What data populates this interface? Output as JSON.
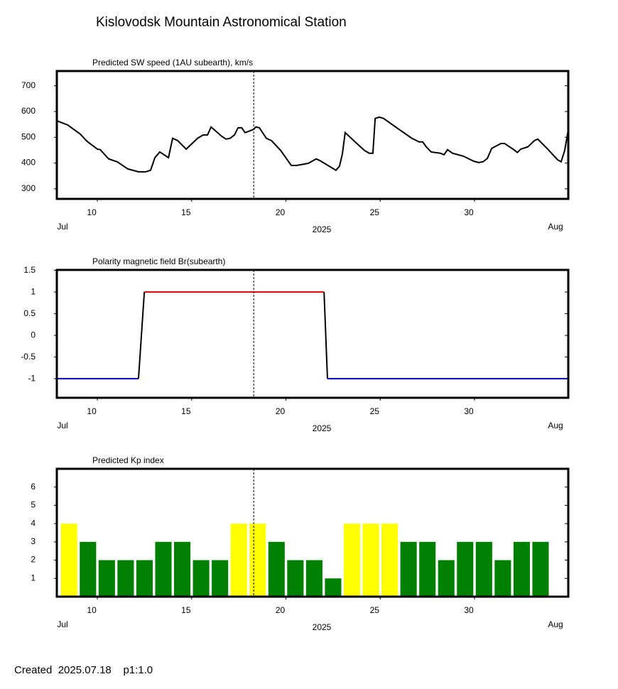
{
  "title": "Kislovodsk Mountain Astronomical Station",
  "footer": "Created  2025.07.18    p1:1.0",
  "chart_data": [
    {
      "type": "line",
      "title": "Predicted SW speed (1AU subearth), km/s",
      "color": "#000000",
      "x": [
        7.85,
        8.42,
        9.1,
        9.44,
        10.0,
        10.15,
        10.6,
        11.05,
        11.62,
        12.18,
        12.56,
        12.82,
        13.05,
        13.31,
        13.77,
        13.99,
        14.26,
        14.71,
        15.31,
        15.61,
        15.84,
        16.03,
        16.59,
        16.82,
        17.04,
        17.27,
        17.46,
        17.65,
        17.83,
        18.02,
        18.29,
        18.4,
        18.59,
        18.96,
        19.23,
        19.72,
        20.28,
        20.58,
        21.19,
        21.6,
        21.79,
        22.65,
        22.84,
        22.99,
        23.14,
        23.67,
        24.16,
        24.42,
        24.61,
        24.73,
        24.95,
        25.18,
        25.93,
        26.68,
        27.06,
        27.25,
        27.44,
        27.7,
        28.19,
        28.38,
        28.57,
        28.83,
        29.4,
        29.96,
        30.22,
        30.45,
        30.68,
        30.91,
        31.4,
        31.59,
        32.08,
        32.27,
        32.45,
        32.83,
        33.17,
        33.35,
        33.84,
        34.4,
        34.59,
        34.78,
        34.97
      ],
      "values": [
        564,
        548,
        512,
        485,
        454,
        452,
        416,
        405,
        377,
        366,
        366,
        372,
        421,
        443,
        421,
        496,
        487,
        454,
        496,
        509,
        509,
        540,
        504,
        493,
        496,
        509,
        537,
        537,
        518,
        523,
        531,
        540,
        537,
        496,
        487,
        449,
        391,
        391,
        399,
        416,
        410,
        372,
        388,
        435,
        518,
        482,
        449,
        438,
        438,
        573,
        578,
        573,
        534,
        496,
        482,
        482,
        463,
        443,
        438,
        432,
        452,
        438,
        427,
        407,
        402,
        405,
        418,
        457,
        476,
        476,
        452,
        441,
        454,
        463,
        487,
        493,
        457,
        413,
        405,
        449,
        529
      ],
      "xlim": [
        7.85,
        34.97
      ],
      "ylim": [
        261,
        757
      ],
      "xticks": [
        10,
        15,
        20,
        25,
        30
      ],
      "yticks": [
        300,
        400,
        500,
        600,
        700
      ],
      "month_labels": [
        "Jul",
        "Aug"
      ],
      "year_label": "2025",
      "marker_x": 18.29
    },
    {
      "type": "line",
      "title": "Polarity magnetic field  Br(subearth)",
      "color": "#000000",
      "positive_color": "#e00000",
      "negative_color": "#0000c0",
      "x": [
        7.85,
        12.18,
        12.49,
        22.02,
        22.2,
        34.97
      ],
      "values": [
        -1,
        -1,
        1,
        1,
        -1,
        -1
      ],
      "xlim": [
        7.85,
        34.97
      ],
      "ylim": [
        -1.44,
        1.51
      ],
      "xticks": [
        10,
        15,
        20,
        25,
        30
      ],
      "yticks": [
        1.5,
        1,
        0.5,
        0,
        -0.5,
        -1
      ],
      "month_labels": [
        "Jul",
        "Aug"
      ],
      "year_label": "2025",
      "marker_x": 18.29
    },
    {
      "type": "bar",
      "title": "Predicted Kp index",
      "x": [
        8.5,
        9.5,
        10.5,
        11.5,
        12.5,
        13.5,
        14.5,
        15.5,
        16.5,
        17.5,
        18.5,
        19.5,
        20.5,
        21.5,
        22.5,
        23.5,
        24.5,
        25.5,
        26.5,
        27.5,
        28.5,
        29.5,
        30.5,
        31.5,
        32.5,
        33.5
      ],
      "values": [
        4,
        3,
        2,
        2,
        2,
        3,
        3,
        2,
        2,
        4,
        4,
        3,
        2,
        2,
        1,
        4,
        4,
        4,
        3,
        3,
        2,
        3,
        3,
        2,
        3,
        3
      ],
      "colors": [
        "#ffff00",
        "#008000",
        "#008000",
        "#008000",
        "#008000",
        "#008000",
        "#008000",
        "#008000",
        "#008000",
        "#ffff00",
        "#ffff00",
        "#008000",
        "#008000",
        "#008000",
        "#008000",
        "#ffff00",
        "#ffff00",
        "#ffff00",
        "#008000",
        "#008000",
        "#008000",
        "#008000",
        "#008000",
        "#008000",
        "#008000",
        "#008000"
      ],
      "bar_width": 0.87,
      "xlim": [
        7.85,
        34.97
      ],
      "ylim": [
        0,
        7
      ],
      "xticks": [
        10,
        15,
        20,
        25,
        30
      ],
      "yticks": [
        1,
        2,
        3,
        4,
        5,
        6
      ],
      "month_labels": [
        "Jul",
        "Aug"
      ],
      "year_label": "2025",
      "marker_x": 18.29
    }
  ]
}
